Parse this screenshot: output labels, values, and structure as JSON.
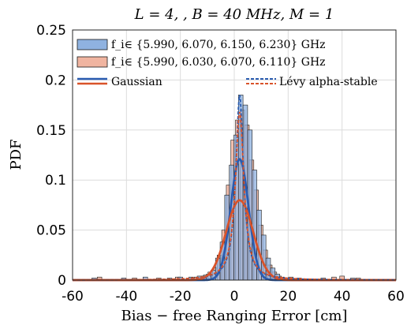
{
  "chart_data": {
    "type": "bar",
    "title": "L = 4,   , B = 40  MHz, M = 1",
    "xlabel": "Bias − free  Ranging  Error  [cm]",
    "ylabel": "PDF",
    "xlim": [
      -60,
      60
    ],
    "ylim": [
      0,
      0.25
    ],
    "xticks": [
      "-60",
      "-40",
      "-20",
      "0",
      "20",
      "40",
      "60"
    ],
    "yticks": [
      "0",
      "0.05",
      "0.1",
      "0.15",
      "0.2",
      "0.25"
    ],
    "grid": true,
    "legend_placement": "top",
    "colors": {
      "blue_fill": "#8fb2e0",
      "blue_line": "#2a5cb0",
      "orange_fill": "#f0b4a0",
      "orange_line": "#d9532a",
      "overlap_fill": "#8e8eaf"
    },
    "legend": {
      "hist_blue": "f_i∈ {5.990,  6.070,  6.150,  6.230}  GHz",
      "hist_orange": "f_i∈ {5.990,  6.030,  6.070,  6.110}  GHz",
      "gaussian": "Gaussian",
      "levy": "Lévy alpha-stable"
    },
    "bin_width": 1.7,
    "series": [
      {
        "name": "f_i∈ {5.990,  6.070,  6.150,  6.230}  GHz",
        "kind": "histogram",
        "bin_centers": [
          -52,
          -41,
          -33,
          -24,
          -20,
          -16,
          -12.9,
          -11.2,
          -9.5,
          -7.8,
          -6.1,
          -4.4,
          -2.7,
          -1.0,
          0.7,
          2.4,
          4.1,
          5.8,
          7.5,
          9.2,
          10.9,
          12.6,
          14.3,
          16.0,
          17.7,
          24,
          33,
          44
        ],
        "values": [
          0.002,
          0.002,
          0.003,
          0.002,
          0.003,
          0.003,
          0.004,
          0.004,
          0.006,
          0.01,
          0.022,
          0.038,
          0.085,
          0.115,
          0.145,
          0.185,
          0.175,
          0.15,
          0.11,
          0.07,
          0.045,
          0.022,
          0.012,
          0.006,
          0.003,
          0.002,
          0.002,
          0.002
        ]
      },
      {
        "name": "f_i∈ {5.990,  6.030,  6.070,  6.110}  GHz",
        "kind": "histogram",
        "bin_centers": [
          -50,
          -37,
          -28,
          -21,
          -17,
          -14,
          -12.3,
          -10.6,
          -8.9,
          -7.2,
          -5.5,
          -3.8,
          -2.1,
          -0.4,
          1.3,
          3.0,
          4.7,
          6.4,
          8.1,
          9.8,
          11.5,
          13.2,
          14.9,
          16.6,
          21,
          37,
          40,
          46
        ],
        "values": [
          0.003,
          0.002,
          0.002,
          0.003,
          0.002,
          0.003,
          0.003,
          0.005,
          0.008,
          0.012,
          0.025,
          0.05,
          0.095,
          0.14,
          0.16,
          0.17,
          0.155,
          0.12,
          0.09,
          0.055,
          0.03,
          0.015,
          0.008,
          0.004,
          0.003,
          0.003,
          0.004,
          0.002
        ]
      },
      {
        "name": "Gaussian",
        "kind": "curve",
        "color": "blue",
        "dist": "normal",
        "mu": 2,
        "sigma": 3.3
      },
      {
        "name": "Gaussian",
        "kind": "curve",
        "color": "orange",
        "dist": "normal",
        "mu": 2,
        "sigma": 5.0
      },
      {
        "name": "Lévy alpha-stable",
        "kind": "curve",
        "color": "blue",
        "dist": "cauchy",
        "x0": 2,
        "peak": 0.185,
        "gamma": 1.72
      },
      {
        "name": "Lévy alpha-stable",
        "kind": "curve",
        "color": "orange",
        "dist": "cauchy",
        "x0": 2,
        "peak": 0.168,
        "gamma": 1.9
      }
    ]
  }
}
